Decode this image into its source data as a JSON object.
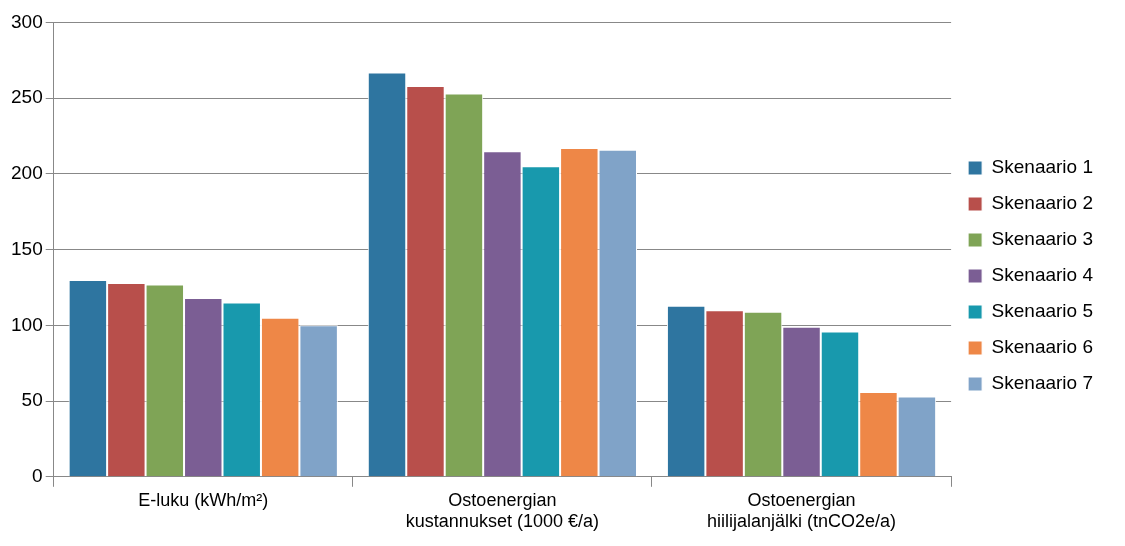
{
  "chart_data": {
    "type": "bar",
    "categories": [
      "E-luku (kWh/m²)",
      "Ostoenergian kustannukset (1000 €/a)",
      "Ostoenergian hiilijalanjälki (tnCO2e/a)"
    ],
    "series": [
      {
        "name": "Skenaario 1",
        "color": "#2e75a0",
        "values": [
          130,
          267,
          113
        ]
      },
      {
        "name": "Skenaario 2",
        "color": "#b84f4b",
        "values": [
          128,
          258,
          110
        ]
      },
      {
        "name": "Skenaario 3",
        "color": "#7fa456",
        "values": [
          127,
          253,
          109
        ]
      },
      {
        "name": "Skenaario 4",
        "color": "#7b5e94",
        "values": [
          118,
          215,
          99
        ]
      },
      {
        "name": "Skenaario 5",
        "color": "#1899ad",
        "values": [
          115,
          205,
          96
        ]
      },
      {
        "name": "Skenaario 6",
        "color": "#ee8747",
        "values": [
          105,
          217,
          56
        ]
      },
      {
        "name": "Skenaario 7",
        "color": "#80a3c8",
        "values": [
          100,
          216,
          53
        ]
      }
    ],
    "ylim": [
      0,
      300
    ],
    "yticks": [
      0,
      50,
      100,
      150,
      200,
      250,
      300
    ],
    "grid": "y",
    "legend": "right"
  }
}
